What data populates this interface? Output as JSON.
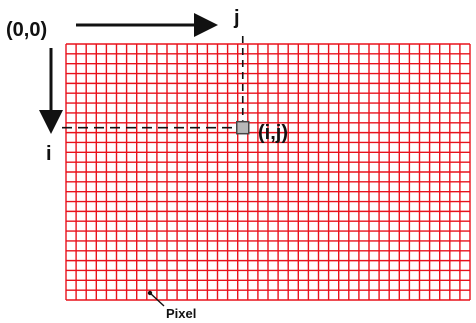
{
  "labels": {
    "origin": "(0,0)",
    "col_axis": "j",
    "row_axis": "i",
    "cell": "(i,j)",
    "pixel": "Pixel"
  },
  "grid": {
    "columns": 40,
    "rows": 26,
    "line_color": "#e8121c",
    "highlighted_cell_fill": "#b8b8b8",
    "highlighted_cell_stroke": "#444444",
    "highlighted_cell": {
      "row": 8,
      "col": 17
    }
  },
  "colors": {
    "arrow": "#111111",
    "guide_dash": "#111111",
    "text": "#111111"
  },
  "icons": {
    "col_arrow": "arrow-right-icon",
    "row_arrow": "arrow-down-icon"
  }
}
